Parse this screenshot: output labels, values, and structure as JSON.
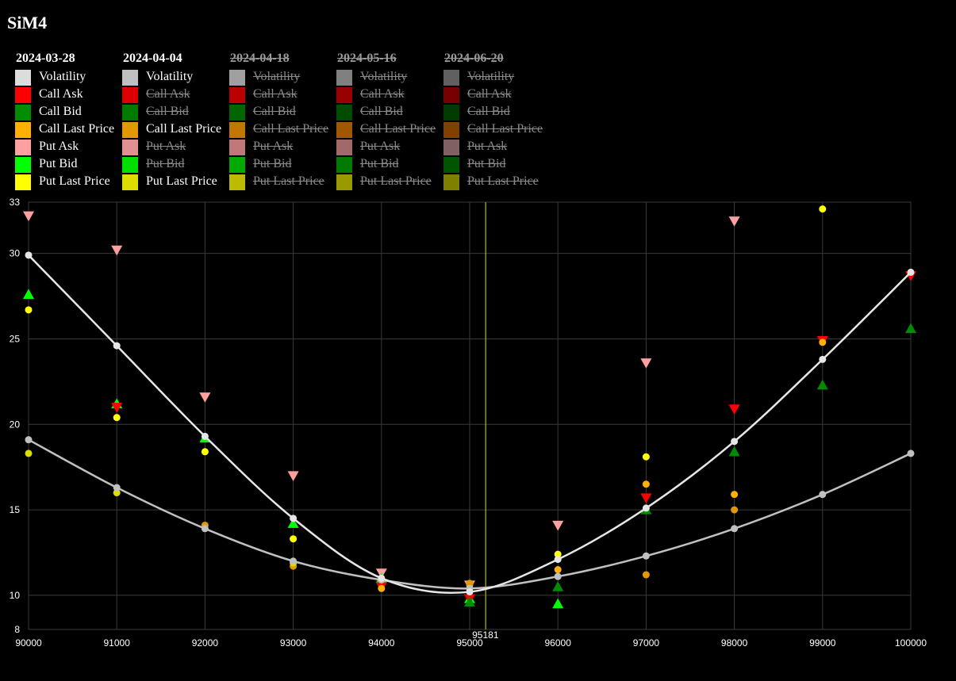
{
  "page_title": "SiM4",
  "legend": [
    {
      "date": "2024-03-28",
      "disabled": false,
      "items": [
        {
          "label": "Volatility",
          "color": "#dcdcdc",
          "off": false
        },
        {
          "label": "Call Ask",
          "color": "#ff0000",
          "off": false
        },
        {
          "label": "Call Bid",
          "color": "#008c00",
          "off": false
        },
        {
          "label": "Call Last Price",
          "color": "#ffb000",
          "off": false
        },
        {
          "label": "Put Ask",
          "color": "#ffa0a0",
          "off": false
        },
        {
          "label": "Put Bid",
          "color": "#00ff00",
          "off": false
        },
        {
          "label": "Put Last Price",
          "color": "#ffff00",
          "off": false
        }
      ]
    },
    {
      "date": "2024-04-04",
      "disabled": false,
      "items": [
        {
          "label": "Volatility",
          "color": "#c0c0c0",
          "off": false
        },
        {
          "label": "Call Ask",
          "color": "#dd0000",
          "off": true
        },
        {
          "label": "Call Bid",
          "color": "#007a00",
          "off": true
        },
        {
          "label": "Call Last Price",
          "color": "#e09a00",
          "off": false
        },
        {
          "label": "Put Ask",
          "color": "#e09090",
          "off": true
        },
        {
          "label": "Put Bid",
          "color": "#00dd00",
          "off": true
        },
        {
          "label": "Put Last Price",
          "color": "#dddd00",
          "off": false
        }
      ]
    },
    {
      "date": "2024-04-18",
      "disabled": true,
      "items": [
        {
          "label": "Volatility",
          "color": "#a0a0a0",
          "off": true
        },
        {
          "label": "Call Ask",
          "color": "#bb0000",
          "off": true
        },
        {
          "label": "Call Bid",
          "color": "#006600",
          "off": true
        },
        {
          "label": "Call Last Price",
          "color": "#c07800",
          "off": true
        },
        {
          "label": "Put Ask",
          "color": "#c07878",
          "off": true
        },
        {
          "label": "Put Bid",
          "color": "#00aa00",
          "off": true
        },
        {
          "label": "Put Last Price",
          "color": "#bbbb00",
          "off": true
        }
      ]
    },
    {
      "date": "2024-05-16",
      "disabled": true,
      "items": [
        {
          "label": "Volatility",
          "color": "#808080",
          "off": true
        },
        {
          "label": "Call Ask",
          "color": "#990000",
          "off": true
        },
        {
          "label": "Call Bid",
          "color": "#004c00",
          "off": true
        },
        {
          "label": "Call Last Price",
          "color": "#a05800",
          "off": true
        },
        {
          "label": "Put Ask",
          "color": "#a06a6a",
          "off": true
        },
        {
          "label": "Put Bid",
          "color": "#007a00",
          "off": true
        },
        {
          "label": "Put Last Price",
          "color": "#999900",
          "off": true
        }
      ]
    },
    {
      "date": "2024-06-20",
      "disabled": true,
      "items": [
        {
          "label": "Volatility",
          "color": "#606060",
          "off": true
        },
        {
          "label": "Call Ask",
          "color": "#770000",
          "off": true
        },
        {
          "label": "Call Bid",
          "color": "#003c00",
          "off": true
        },
        {
          "label": "Call Last Price",
          "color": "#804000",
          "off": true
        },
        {
          "label": "Put Ask",
          "color": "#806060",
          "off": true
        },
        {
          "label": "Put Bid",
          "color": "#005500",
          "off": true
        },
        {
          "label": "Put Last Price",
          "color": "#808000",
          "off": true
        }
      ]
    }
  ],
  "chart_data": {
    "type": "scatter",
    "xlim": [
      90000,
      100000
    ],
    "ylim": [
      8,
      33
    ],
    "x_ticks": [
      "90000",
      "91000",
      "92000",
      "93000",
      "94000",
      "95000",
      "96000",
      "97000",
      "98000",
      "99000",
      "100000"
    ],
    "y_ticks": [
      "8",
      "10",
      "15",
      "20",
      "25",
      "30",
      "33"
    ],
    "grid": true,
    "underlying_marker": {
      "x": 95181,
      "label": "95181",
      "color": "#dddd00"
    },
    "volatility_curves": [
      {
        "name": "2024-03-28",
        "color": "#e6e6e6",
        "x": [
          90000,
          91000,
          92000,
          93000,
          94000,
          95000,
          96000,
          97000,
          98000,
          99000,
          100000
        ],
        "y": [
          29.9,
          24.6,
          19.3,
          14.5,
          11.0,
          10.2,
          12.1,
          15.1,
          19.0,
          23.8,
          28.9
        ]
      },
      {
        "name": "2024-04-04",
        "color": "#c0c0c0",
        "x": [
          90000,
          91000,
          92000,
          93000,
          94000,
          95000,
          96000,
          97000,
          98000,
          99000,
          100000
        ],
        "y": [
          19.1,
          16.3,
          13.9,
          12.0,
          10.9,
          10.4,
          11.1,
          12.3,
          13.9,
          15.9,
          18.3
        ]
      }
    ],
    "markers": [
      {
        "name": "Put Ask",
        "shape": "triangle-down",
        "color": "#ffa0a0",
        "x": [
          90000,
          91000,
          92000,
          93000,
          94000,
          95000,
          96000,
          97000,
          98000
        ],
        "y": [
          32.2,
          30.2,
          21.6,
          17.0,
          11.3,
          10.6,
          14.1,
          23.6,
          31.9
        ]
      },
      {
        "name": "Put Bid",
        "shape": "triangle-up",
        "color": "#00ff00",
        "x": [
          90000,
          91000,
          92000,
          93000,
          94000,
          95000,
          96000
        ],
        "y": [
          27.6,
          21.2,
          19.2,
          14.2,
          11.0,
          9.8,
          9.5
        ]
      },
      {
        "name": "Put Last Price",
        "shape": "circle",
        "color": "#ffff00",
        "x": [
          90000,
          91000,
          92000,
          93000,
          96000,
          97000,
          99000
        ],
        "y": [
          26.7,
          20.4,
          18.4,
          13.3,
          12.4,
          18.1,
          32.6
        ]
      },
      {
        "name": "Call Ask",
        "shape": "triangle-down",
        "color": "#ff0000",
        "x": [
          91000,
          94000,
          95000,
          97000,
          98000,
          99000,
          100000
        ],
        "y": [
          21.0,
          10.5,
          9.8,
          15.7,
          20.9,
          24.9,
          28.7
        ]
      },
      {
        "name": "Call Bid",
        "shape": "triangle-up",
        "color": "#008c00",
        "x": [
          95000,
          96000,
          97000,
          98000,
          99000,
          100000
        ],
        "y": [
          9.6,
          10.5,
          15.0,
          18.4,
          22.3,
          25.6
        ]
      },
      {
        "name": "Call Last Price",
        "shape": "circle",
        "color": "#ffb000",
        "x": [
          94000,
          95000,
          96000,
          97000,
          98000,
          99000
        ],
        "y": [
          10.4,
          10.6,
          11.5,
          16.5,
          15.9,
          24.8
        ]
      },
      {
        "name": "Call Last Price 2024-04-04",
        "shape": "circle",
        "color": "#e09a00",
        "x": [
          92000,
          93000,
          95000,
          96000,
          97000,
          98000
        ],
        "y": [
          14.1,
          11.7,
          10.7,
          11.1,
          11.2,
          15.0
        ]
      },
      {
        "name": "Put Last Price 2024-04-04",
        "shape": "circle",
        "color": "#dddd00",
        "x": [
          90000,
          91000,
          93000
        ],
        "y": [
          18.3,
          16.0,
          11.9
        ]
      }
    ]
  }
}
